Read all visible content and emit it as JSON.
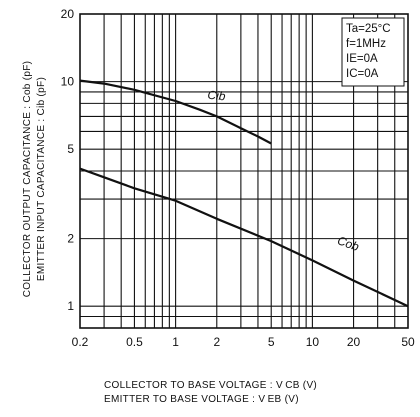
{
  "chart_data": {
    "type": "line",
    "x_scale": "log",
    "y_scale": "log",
    "xlim": [
      0.2,
      50
    ],
    "ylim": [
      0.8,
      20
    ],
    "x_ticks": [
      {
        "v": 0.2,
        "label": "0.2"
      },
      {
        "v": 0.5,
        "label": "0.5"
      },
      {
        "v": 1,
        "label": "1"
      },
      {
        "v": 2,
        "label": "2"
      },
      {
        "v": 5,
        "label": "5"
      },
      {
        "v": 10,
        "label": "10"
      },
      {
        "v": 20,
        "label": "20"
      },
      {
        "v": 50,
        "label": "50"
      }
    ],
    "y_ticks": [
      {
        "v": 1,
        "label": "1"
      },
      {
        "v": 2,
        "label": "2"
      },
      {
        "v": 5,
        "label": "5"
      },
      {
        "v": 10,
        "label": "10"
      },
      {
        "v": 20,
        "label": "20"
      }
    ],
    "x_grid": [
      0.3,
      0.4,
      0.5,
      0.6,
      0.7,
      0.8,
      0.9,
      1,
      2,
      3,
      4,
      5,
      6,
      7,
      8,
      9,
      10,
      20,
      30,
      40
    ],
    "y_grid": [
      0.9,
      1,
      2,
      3,
      4,
      5,
      6,
      7,
      8,
      9,
      10
    ],
    "grid": true,
    "xlabel_lines": [
      "COLLECTOR TO BASE VOLTAGE : V CB (V)",
      "EMITTER TO BASE VOLTAGE    : V EB (V)"
    ],
    "ylabel_lines": [
      "COLLECTOR OUTPUT CAPACITANCE : Cob (pF)",
      "EMITTER INPUT CAPACITANCE   : Cib (pF)"
    ],
    "annotation": [
      "Ta=25°C",
      "f=1MHz",
      "IE=0A",
      "IC=0A"
    ],
    "series": [
      {
        "name": "Cib",
        "x": [
          0.2,
          0.3,
          0.5,
          1,
          1.5,
          2,
          3,
          4,
          5
        ],
        "y": [
          10.1,
          9.8,
          9.2,
          8.2,
          7.5,
          7.0,
          6.2,
          5.7,
          5.3
        ],
        "label_at": [
          1.7,
          8.4
        ]
      },
      {
        "name": "Cob",
        "x": [
          0.2,
          0.3,
          0.5,
          1,
          2,
          5,
          10,
          20,
          50
        ],
        "y": [
          4.1,
          3.75,
          3.35,
          2.95,
          2.45,
          1.95,
          1.6,
          1.3,
          1.0
        ],
        "label_at": [
          15,
          1.9
        ]
      }
    ]
  }
}
